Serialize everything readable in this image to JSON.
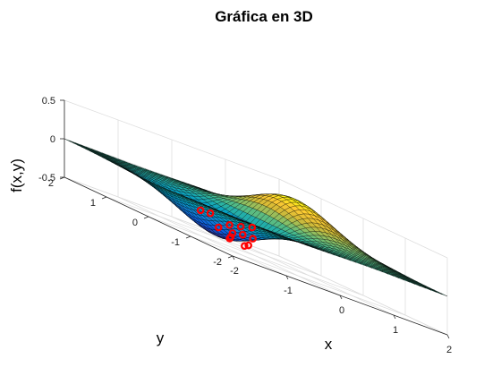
{
  "chart_data": {
    "type": "surface",
    "title": "Gráfica en 3D",
    "xlabel": "x",
    "ylabel": "y",
    "zlabel": "f(x,y)",
    "xlim": [
      -2,
      2
    ],
    "ylim": [
      -2,
      2
    ],
    "zlim": [
      -0.5,
      0.5
    ],
    "x_ticks": [
      "-2",
      "-1",
      "0",
      "1",
      "2"
    ],
    "y_ticks": [
      "-2",
      "-1",
      "0",
      "1",
      "2"
    ],
    "z_ticks": [
      "-0.5",
      "0",
      "0.5"
    ],
    "colormap": "parula",
    "grid": true,
    "mesh_count": 41,
    "function": "f(x,y) = x·exp(-x²-y²)",
    "surface_extrema": {
      "max": {
        "x": 0.71,
        "y": 0,
        "z": 0.43
      },
      "min": {
        "x": -0.71,
        "y": 0,
        "z": -0.43
      }
    },
    "markers": {
      "color": "#ff0000",
      "points": [
        {
          "x": -0.6,
          "y": 0.55,
          "z": -0.2
        },
        {
          "x": -0.3,
          "y": 0.7,
          "z": -0.2
        },
        {
          "x": -0.1,
          "y": 0.5,
          "z": -0.25
        },
        {
          "x": 0.15,
          "y": 0.55,
          "z": -0.22
        },
        {
          "x": 0.4,
          "y": 0.6,
          "z": -0.18
        },
        {
          "x": -0.5,
          "y": 0.25,
          "z": -0.32
        },
        {
          "x": -0.35,
          "y": 0.15,
          "z": -0.38
        },
        {
          "x": -0.2,
          "y": 0.3,
          "z": -0.33
        },
        {
          "x": -0.05,
          "y": 0.25,
          "z": -0.3
        },
        {
          "x": 0.1,
          "y": 0.2,
          "z": -0.3
        },
        {
          "x": -0.45,
          "y": 0.05,
          "z": -0.4
        },
        {
          "x": -0.25,
          "y": -0.05,
          "z": -0.42
        },
        {
          "x": -0.1,
          "y": 0.05,
          "z": -0.4
        }
      ]
    }
  }
}
